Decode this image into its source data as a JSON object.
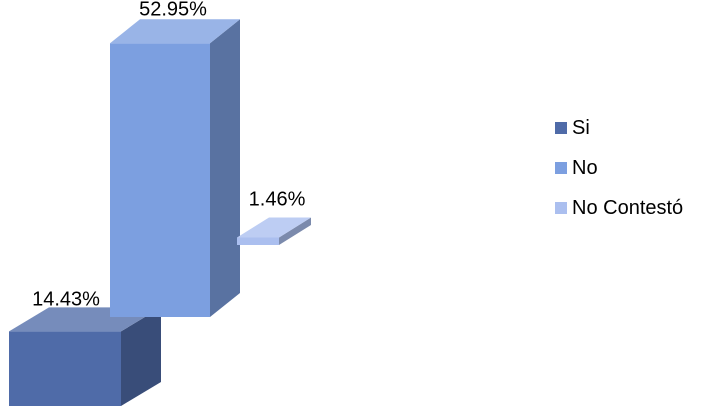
{
  "chart_data": {
    "type": "bar",
    "categories": [
      "Si",
      "No",
      "No Contestó"
    ],
    "values": [
      14.43,
      52.95,
      1.46
    ],
    "data_labels": [
      "14.43%",
      "52.95%",
      "1.46%"
    ],
    "unit": "%",
    "legend_position": "right",
    "grid": false,
    "style": "3d",
    "colors": [
      "#4F6BA8",
      "#7C9FE0",
      "#ABBFEF"
    ]
  }
}
